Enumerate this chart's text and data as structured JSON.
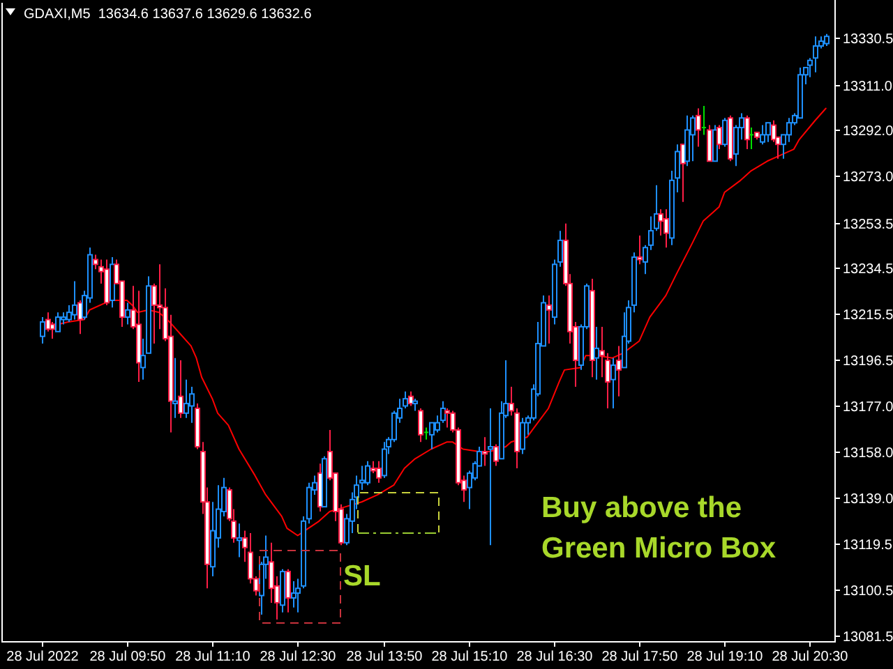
{
  "chart_data": {
    "type": "candlestick",
    "title": "GDAXI,M5  13634.6 13637.6 13629.6 13632.6",
    "x": [
      "2022-07-28T08:30",
      "2022-07-28T08:35",
      "2022-07-28T08:40",
      "2022-07-28T08:45",
      "2022-07-28T08:50",
      "2022-07-28T08:55",
      "2022-07-28T09:00",
      "2022-07-28T09:05",
      "2022-07-28T09:10",
      "2022-07-28T09:15",
      "2022-07-28T09:20",
      "2022-07-28T09:25",
      "2022-07-28T09:30",
      "2022-07-28T09:35",
      "2022-07-28T09:40",
      "2022-07-28T09:45",
      "2022-07-28T09:50",
      "2022-07-28T09:55",
      "2022-07-28T10:00",
      "2022-07-28T10:05",
      "2022-07-28T10:10",
      "2022-07-28T10:15",
      "2022-07-28T10:20",
      "2022-07-28T10:25",
      "2022-07-28T10:30",
      "2022-07-28T10:35",
      "2022-07-28T10:40",
      "2022-07-28T10:45",
      "2022-07-28T10:50",
      "2022-07-28T10:55",
      "2022-07-28T11:00",
      "2022-07-28T11:05",
      "2022-07-28T11:10",
      "2022-07-28T11:15",
      "2022-07-28T11:20",
      "2022-07-28T11:25",
      "2022-07-28T11:30",
      "2022-07-28T11:35",
      "2022-07-28T11:40",
      "2022-07-28T11:45",
      "2022-07-28T11:50",
      "2022-07-28T11:55",
      "2022-07-28T12:00",
      "2022-07-28T12:05",
      "2022-07-28T12:10",
      "2022-07-28T12:15",
      "2022-07-28T12:20",
      "2022-07-28T12:25",
      "2022-07-28T12:30",
      "2022-07-28T12:35",
      "2022-07-28T12:40",
      "2022-07-28T12:45",
      "2022-07-28T12:50",
      "2022-07-28T12:55",
      "2022-07-28T13:00",
      "2022-07-28T13:05",
      "2022-07-28T13:10",
      "2022-07-28T13:15",
      "2022-07-28T13:20",
      "2022-07-28T13:25",
      "2022-07-28T13:30",
      "2022-07-28T13:35",
      "2022-07-28T13:40",
      "2022-07-28T13:45",
      "2022-07-28T13:50",
      "2022-07-28T13:55",
      "2022-07-28T14:00",
      "2022-07-28T14:05",
      "2022-07-28T14:10",
      "2022-07-28T14:15",
      "2022-07-28T14:20",
      "2022-07-28T14:25",
      "2022-07-28T14:30",
      "2022-07-28T14:35",
      "2022-07-28T14:40",
      "2022-07-28T14:45",
      "2022-07-28T14:50",
      "2022-07-28T14:55",
      "2022-07-28T15:00",
      "2022-07-28T15:05",
      "2022-07-28T15:10",
      "2022-07-28T15:15",
      "2022-07-28T15:20",
      "2022-07-28T15:25",
      "2022-07-28T15:30",
      "2022-07-28T15:35",
      "2022-07-28T15:40",
      "2022-07-28T15:45",
      "2022-07-28T15:50",
      "2022-07-28T15:55",
      "2022-07-28T16:00",
      "2022-07-28T16:05",
      "2022-07-28T16:10",
      "2022-07-28T16:15",
      "2022-07-28T16:20",
      "2022-07-28T16:25",
      "2022-07-28T16:30",
      "2022-07-28T16:35",
      "2022-07-28T16:40",
      "2022-07-28T16:45",
      "2022-07-28T16:50",
      "2022-07-28T16:55",
      "2022-07-28T17:00",
      "2022-07-28T17:05",
      "2022-07-28T17:10",
      "2022-07-28T17:15",
      "2022-07-28T17:20",
      "2022-07-28T17:25",
      "2022-07-28T17:30",
      "2022-07-28T17:35",
      "2022-07-28T17:40",
      "2022-07-28T17:45",
      "2022-07-28T17:50",
      "2022-07-28T17:55",
      "2022-07-28T18:00",
      "2022-07-28T18:05",
      "2022-07-28T18:10",
      "2022-07-28T18:15",
      "2022-07-28T18:20",
      "2022-07-28T18:25",
      "2022-07-28T18:30",
      "2022-07-28T18:35",
      "2022-07-28T18:40",
      "2022-07-28T18:45",
      "2022-07-28T18:50",
      "2022-07-28T18:55",
      "2022-07-28T19:00",
      "2022-07-28T19:05",
      "2022-07-28T19:10",
      "2022-07-28T19:15",
      "2022-07-28T19:20",
      "2022-07-28T19:25",
      "2022-07-28T19:30",
      "2022-07-28T19:35",
      "2022-07-28T19:40",
      "2022-07-28T19:45",
      "2022-07-28T19:50",
      "2022-07-28T19:55",
      "2022-07-28T20:00",
      "2022-07-28T20:05",
      "2022-07-28T20:10",
      "2022-07-28T20:15",
      "2022-07-28T20:20",
      "2022-07-28T20:25",
      "2022-07-28T20:30",
      "2022-07-28T20:35",
      "2022-07-28T20:40",
      "2022-07-28T20:45"
    ],
    "ohlc": [
      [
        13206,
        13214,
        13203,
        13212
      ],
      [
        13213,
        13216,
        13208,
        13209
      ],
      [
        13211,
        13212,
        13205,
        13209
      ],
      [
        13208,
        13216,
        13208,
        13214
      ],
      [
        13213,
        13216,
        13211,
        13214
      ],
      [
        13213,
        13219,
        13212,
        13216
      ],
      [
        13215,
        13229,
        13213,
        13219
      ],
      [
        13220,
        13221,
        13207,
        13213
      ],
      [
        13214,
        13225,
        13213,
        13223
      ],
      [
        13222,
        13243,
        13220,
        13240
      ],
      [
        13238,
        13240,
        13234,
        13236
      ],
      [
        13235,
        13238,
        13228,
        13233
      ],
      [
        13234,
        13238,
        13219,
        13220
      ],
      [
        13221,
        13239,
        13218,
        13236
      ],
      [
        13236,
        13238,
        13228,
        13228
      ],
      [
        13229,
        13229,
        13210,
        13214
      ],
      [
        13214,
        13220,
        13211,
        13217
      ],
      [
        13217,
        13227,
        13209,
        13210
      ],
      [
        13211,
        13225,
        13187,
        13195
      ],
      [
        13193,
        13205,
        13188,
        13198
      ],
      [
        13199,
        13231,
        13199,
        13227
      ],
      [
        13227,
        13228,
        13203,
        13219
      ],
      [
        13219,
        13236,
        13209,
        13218
      ],
      [
        13218,
        13226,
        13204,
        13205
      ],
      [
        13206,
        13215,
        13166,
        13179
      ],
      [
        13178,
        13197,
        13172,
        13179
      ],
      [
        13181,
        13196,
        13172,
        13174
      ],
      [
        13174,
        13188,
        13172,
        13178
      ],
      [
        13177,
        13185,
        13170,
        13182
      ],
      [
        13176,
        13178,
        13159,
        13160
      ],
      [
        13158,
        13162,
        13132,
        13137
      ],
      [
        13137,
        13143,
        13101,
        13111
      ],
      [
        13110,
        13137,
        13106,
        13125
      ],
      [
        13122,
        13144,
        13118,
        13134
      ],
      [
        13133,
        13147,
        13131,
        13143
      ],
      [
        13142,
        13143,
        13129,
        13130
      ],
      [
        13129,
        13134,
        13120,
        13122
      ],
      [
        13121,
        13128,
        13114,
        13122
      ],
      [
        13122,
        13125,
        13112,
        13118
      ],
      [
        13116,
        13124,
        13103,
        13105
      ],
      [
        13105,
        13106,
        13098,
        13100
      ],
      [
        13098,
        13112,
        13090,
        13111
      ],
      [
        13111,
        13123,
        13105,
        13114
      ],
      [
        13112,
        13120,
        13095,
        13101
      ],
      [
        13102,
        13106,
        13088,
        13095
      ],
      [
        13094,
        13109,
        13091,
        13108
      ],
      [
        13108,
        13109,
        13091,
        13097
      ],
      [
        13097,
        13104,
        13093,
        13099
      ],
      [
        13099,
        13105,
        13091,
        13101
      ],
      [
        13102,
        13131,
        13101,
        13129
      ],
      [
        13130,
        13145,
        13128,
        13143
      ],
      [
        13142,
        13148,
        13140,
        13145
      ],
      [
        13149,
        13153,
        13133,
        13135
      ],
      [
        13135,
        13156,
        13135,
        13155
      ],
      [
        13158,
        13167,
        13146,
        13147
      ],
      [
        13149,
        13149,
        13129,
        13133
      ],
      [
        13134,
        13136,
        13119,
        13120
      ],
      [
        13120,
        13132,
        13119,
        13130
      ],
      [
        13129,
        13141,
        13124,
        13138
      ],
      [
        13139,
        13148,
        13134,
        13144
      ],
      [
        13145,
        13152,
        13142,
        13146
      ],
      [
        13145,
        13154,
        13144,
        13152
      ],
      [
        13151,
        13154,
        13149,
        13150
      ],
      [
        13151,
        13154,
        13145,
        13147
      ],
      [
        13148,
        13162,
        13147,
        13159
      ],
      [
        13160,
        13164,
        13157,
        13163
      ],
      [
        13163,
        13175,
        13162,
        13174
      ],
      [
        13172,
        13180,
        13170,
        13176
      ],
      [
        13177,
        13183,
        13176,
        13180
      ],
      [
        13181,
        13183,
        13177,
        13178
      ],
      [
        13178,
        13180,
        13175,
        13179
      ],
      [
        13175,
        13176,
        13162,
        13165
      ],
      [
        13166,
        13168,
        13163,
        13166
      ],
      [
        13165,
        13170,
        13159,
        13170
      ],
      [
        13167,
        13173,
        13166,
        13170
      ],
      [
        13171,
        13179,
        13170,
        13176
      ],
      [
        13175,
        13176,
        13168,
        13174
      ],
      [
        13174,
        13175,
        13166,
        13167
      ],
      [
        13167,
        13168,
        13144,
        13145
      ],
      [
        13146,
        13148,
        13137,
        13142
      ],
      [
        13143,
        13150,
        13134,
        13149
      ],
      [
        13147,
        13154,
        13146,
        13153
      ],
      [
        13152,
        13160,
        13152,
        13158
      ],
      [
        13158,
        13164,
        13152,
        13157
      ],
      [
        13159,
        13176,
        13119,
        13160
      ],
      [
        13160,
        13161,
        13152,
        13154
      ],
      [
        13155,
        13179,
        13155,
        13174
      ],
      [
        13173,
        13196,
        13172,
        13178
      ],
      [
        13178,
        13185,
        13173,
        13175
      ],
      [
        13174,
        13176,
        13151,
        13158
      ],
      [
        13159,
        13172,
        13157,
        13170
      ],
      [
        13170,
        13173,
        13165,
        13172
      ],
      [
        13172,
        13186,
        13171,
        13184
      ],
      [
        13182,
        13212,
        13181,
        13203
      ],
      [
        13202,
        13223,
        13202,
        13220
      ],
      [
        13219,
        13223,
        13203,
        13217
      ],
      [
        13214,
        13238,
        13211,
        13236
      ],
      [
        13237,
        13250,
        13235,
        13246
      ],
      [
        13246,
        13253,
        13227,
        13228
      ],
      [
        13228,
        13232,
        13203,
        13208
      ],
      [
        13210,
        13212,
        13185,
        13196
      ],
      [
        13194,
        13211,
        13192,
        13210
      ],
      [
        13210,
        13228,
        13209,
        13227
      ],
      [
        13225,
        13230,
        13189,
        13196
      ],
      [
        13197,
        13210,
        13188,
        13201
      ],
      [
        13200,
        13210,
        13189,
        13198
      ],
      [
        13196,
        13199,
        13176,
        13187
      ],
      [
        13188,
        13197,
        13176,
        13194
      ],
      [
        13196,
        13202,
        13181,
        13192
      ],
      [
        13193,
        13216,
        13193,
        13206
      ],
      [
        13204,
        13221,
        13203,
        13218
      ],
      [
        13219,
        13241,
        13216,
        13239
      ],
      [
        13239,
        13248,
        13236,
        13238
      ],
      [
        13237,
        13244,
        13232,
        13243
      ],
      [
        13244,
        13256,
        13242,
        13250
      ],
      [
        13251,
        13269,
        13250,
        13257
      ],
      [
        13257,
        13259,
        13248,
        13254
      ],
      [
        13255,
        13259,
        13243,
        13249
      ],
      [
        13247,
        13275,
        13244,
        13271
      ],
      [
        13272,
        13286,
        13266,
        13283
      ],
      [
        13286,
        13286,
        13262,
        13278
      ],
      [
        13279,
        13298,
        13277,
        13292
      ],
      [
        13290,
        13298,
        13279,
        13297
      ],
      [
        13298,
        13301,
        13285,
        13292
      ],
      [
        13293,
        13302,
        13290,
        13293
      ],
      [
        13292,
        13294,
        13279,
        13279
      ],
      [
        13279,
        13294,
        13279,
        13292
      ],
      [
        13293,
        13294,
        13284,
        13286
      ],
      [
        13286,
        13297,
        13285,
        13296
      ],
      [
        13297,
        13298,
        13279,
        13280
      ],
      [
        13282,
        13294,
        13277,
        13293
      ],
      [
        13293,
        13299,
        13288,
        13297
      ],
      [
        13297,
        13298,
        13284,
        13288
      ],
      [
        13290,
        13293,
        13284,
        13290
      ],
      [
        13291,
        13291,
        13288,
        13289
      ],
      [
        13287,
        13294,
        13286,
        13290
      ],
      [
        13290,
        13295,
        13287,
        13295
      ],
      [
        13294,
        13296,
        13287,
        13288
      ],
      [
        13289,
        13289,
        13280,
        13286
      ],
      [
        13286,
        13290,
        13280,
        13290
      ],
      [
        13290,
        13297,
        13287,
        13295
      ],
      [
        13295,
        13299,
        13294,
        13298
      ],
      [
        13297,
        13318,
        13297,
        13315
      ],
      [
        13315,
        13318,
        13311,
        13318
      ],
      [
        13319,
        13322,
        13314,
        13321
      ],
      [
        13322,
        13331,
        13316,
        13327
      ],
      [
        13327,
        13331,
        13326,
        13329
      ],
      [
        13328,
        13332,
        13327,
        13331
      ]
    ],
    "series": [
      {
        "type": "line",
        "color": "#ff0000",
        "x": [
          "2022-07-28T08:30",
          "2022-07-28T08:45",
          "2022-07-28T08:55",
          "2022-07-28T09:10",
          "2022-07-28T09:15",
          "2022-07-28T09:30",
          "2022-07-28T09:35",
          "2022-07-28T09:50",
          "2022-07-28T09:55",
          "2022-07-28T10:00",
          "2022-07-28T10:10",
          "2022-07-28T10:20",
          "2022-07-28T10:30",
          "2022-07-28T10:40",
          "2022-07-28T10:50",
          "2022-07-28T10:55",
          "2022-07-28T11:00",
          "2022-07-28T11:10",
          "2022-07-28T11:15",
          "2022-07-28T11:25",
          "2022-07-28T11:35",
          "2022-07-28T11:50",
          "2022-07-28T12:00",
          "2022-07-28T12:15",
          "2022-07-28T12:20",
          "2022-07-28T12:30",
          "2022-07-28T12:40",
          "2022-07-28T12:50",
          "2022-07-28T13:00",
          "2022-07-28T13:15",
          "2022-07-28T13:30",
          "2022-07-28T13:45",
          "2022-07-28T14:00",
          "2022-07-28T14:10",
          "2022-07-28T14:20",
          "2022-07-28T14:35",
          "2022-07-28T14:50",
          "2022-07-28T14:55",
          "2022-07-28T15:05",
          "2022-07-28T15:20",
          "2022-07-28T15:30",
          "2022-07-28T15:45",
          "2022-07-28T15:50",
          "2022-07-28T16:05",
          "2022-07-28T16:10",
          "2022-07-28T16:25",
          "2022-07-28T16:35",
          "2022-07-28T16:40",
          "2022-07-28T16:55",
          "2022-07-28T17:00",
          "2022-07-28T17:10",
          "2022-07-28T17:25",
          "2022-07-28T17:35",
          "2022-07-28T17:50",
          "2022-07-28T18:00",
          "2022-07-28T18:15",
          "2022-07-28T18:25",
          "2022-07-28T18:40",
          "2022-07-28T18:50",
          "2022-07-28T19:05",
          "2022-07-28T19:10",
          "2022-07-28T19:25",
          "2022-07-28T19:35",
          "2022-07-28T19:50",
          "2022-07-28T20:00",
          "2022-07-28T20:15",
          "2022-07-28T20:20",
          "2022-07-28T20:35",
          "2022-07-28T20:45"
        ],
        "values": [
          13211,
          13211,
          13212,
          13213,
          13217,
          13220,
          13221,
          13221,
          13219,
          13216,
          13217,
          13216,
          13212,
          13207,
          13202,
          13197,
          13189,
          13180,
          13174,
          13169,
          13159,
          13148,
          13140,
          13131,
          13126,
          13123,
          13126,
          13129,
          13133,
          13135,
          13137,
          13140,
          13144,
          13151,
          13155,
          13159,
          13162,
          13162,
          13159,
          13158,
          13158,
          13160,
          13162,
          13164,
          13167,
          13176,
          13187,
          13192,
          13193,
          13198,
          13198,
          13197,
          13199,
          13204,
          13214,
          13223,
          13232,
          13245,
          13254,
          13260,
          13266,
          13271,
          13275,
          13279,
          13281,
          13284,
          13288,
          13296,
          13301
        ]
      }
    ],
    "xlim": [
      "2022-07-28T07:51",
      "2022-07-28T20:53"
    ],
    "ylim": [
      13079,
      13345
    ],
    "xticks": [
      {
        "value": "2022-07-28T08:30",
        "label": "28 Jul 2022"
      },
      {
        "value": "2022-07-28T09:50",
        "label": "28 Jul 09:50"
      },
      {
        "value": "2022-07-28T11:10",
        "label": "28 Jul 11:10"
      },
      {
        "value": "2022-07-28T12:30",
        "label": "28 Jul 12:30"
      },
      {
        "value": "2022-07-28T13:50",
        "label": "28 Jul 13:50"
      },
      {
        "value": "2022-07-28T15:10",
        "label": "28 Jul 15:10"
      },
      {
        "value": "2022-07-28T16:30",
        "label": "28 Jul 16:30"
      },
      {
        "value": "2022-07-28T17:50",
        "label": "28 Jul 17:50"
      },
      {
        "value": "2022-07-28T19:10",
        "label": "28 Jul 19:10"
      },
      {
        "value": "2022-07-28T20:30",
        "label": "28 Jul 20:30"
      }
    ],
    "yticks": [
      {
        "value": 13330.5,
        "label": "13330.5"
      },
      {
        "value": 13311,
        "label": "13311.0"
      },
      {
        "value": 13292,
        "label": "13292.0"
      },
      {
        "value": 13273,
        "label": "13273.0"
      },
      {
        "value": 13253.5,
        "label": "13253.5"
      },
      {
        "value": 13234.5,
        "label": "13234.5"
      },
      {
        "value": 13215.5,
        "label": "13215.5"
      },
      {
        "value": 13196.5,
        "label": "13196.5"
      },
      {
        "value": 13177,
        "label": "13177.0"
      },
      {
        "value": 13158,
        "label": "13158.0"
      },
      {
        "value": 13139,
        "label": "13139.0"
      },
      {
        "value": 13119.5,
        "label": "13119.5"
      },
      {
        "value": 13100.5,
        "label": "13100.5"
      },
      {
        "value": 13081.5,
        "label": "13081.5"
      }
    ],
    "annotations": [
      "SL",
      "Buy above the\nGreen Micro Box"
    ]
  }
}
